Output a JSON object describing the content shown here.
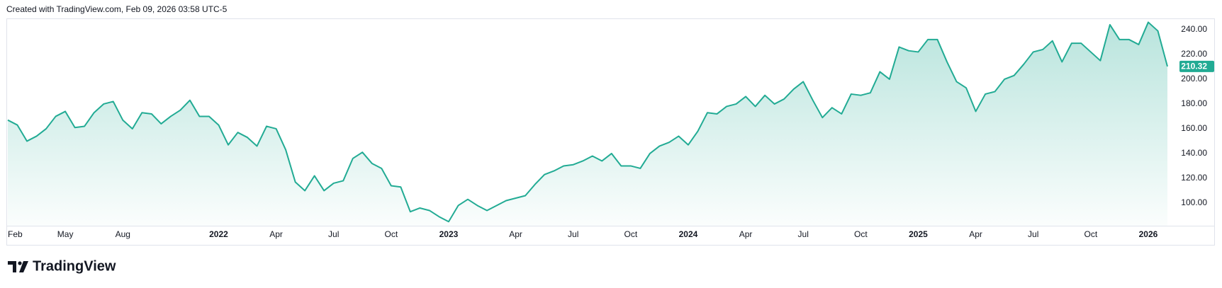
{
  "chart_data": {
    "type": "area",
    "title": "Created with TradingView.com, Feb 09, 2026 03:58 UTC-5",
    "source": "TradingView",
    "color": "#22ab94",
    "categories": [
      "Feb",
      null,
      null,
      null,
      null,
      null,
      "May",
      null,
      null,
      null,
      null,
      null,
      "Aug",
      null,
      null,
      null,
      null,
      null,
      null,
      null,
      null,
      null,
      "2022",
      null,
      null,
      null,
      null,
      null,
      "Apr",
      null,
      null,
      null,
      null,
      null,
      "Jul",
      null,
      null,
      null,
      null,
      null,
      "Oct",
      null,
      null,
      null,
      null,
      null,
      "2023",
      null,
      null,
      null,
      null,
      null,
      null,
      "Apr",
      null,
      null,
      null,
      null,
      null,
      "Jul",
      null,
      null,
      null,
      null,
      null,
      "Oct",
      null,
      null,
      null,
      null,
      null,
      "2024",
      null,
      null,
      null,
      null,
      null,
      "Apr",
      null,
      null,
      null,
      null,
      null,
      "Jul",
      null,
      null,
      null,
      null,
      null,
      "Oct",
      null,
      null,
      null,
      null,
      null,
      "2025",
      null,
      null,
      null,
      null,
      null,
      "Apr",
      null,
      null,
      null,
      null,
      null,
      "Jul",
      null,
      null,
      null,
      null,
      null,
      "Oct",
      null,
      null,
      null,
      null,
      null,
      "2026",
      null,
      null
    ],
    "values": [
      167,
      163,
      150,
      154,
      160,
      170,
      174,
      161,
      162,
      173,
      180,
      182,
      167,
      160,
      173,
      172,
      164,
      170,
      175,
      183,
      170,
      170,
      163,
      147,
      157,
      153,
      146,
      162,
      160,
      143,
      117,
      110,
      122,
      110,
      116,
      118,
      136,
      141,
      132,
      128,
      114,
      113,
      93,
      96,
      94,
      89,
      85,
      98,
      103,
      98,
      94,
      98,
      102,
      104,
      106,
      115,
      123,
      126,
      130,
      131,
      134,
      138,
      134,
      140,
      130,
      130,
      128,
      140,
      146,
      149,
      154,
      147,
      158,
      173,
      172,
      178,
      180,
      186,
      178,
      187,
      180,
      184,
      192,
      198,
      183,
      169,
      177,
      172,
      188,
      187,
      189,
      206,
      200,
      226,
      223,
      222,
      232,
      232,
      214,
      198,
      193,
      174,
      188,
      190,
      200,
      203,
      212,
      222,
      224,
      231,
      214,
      229,
      229,
      222,
      215,
      244,
      232,
      232,
      228,
      246,
      239,
      210.32
    ],
    "ylim": [
      81.7,
      249.1
    ],
    "yticks": [
      {
        "value": 100,
        "label": "100.00"
      },
      {
        "value": 120,
        "label": "120.00"
      },
      {
        "value": 140,
        "label": "140.00"
      },
      {
        "value": 160,
        "label": "160.00"
      },
      {
        "value": 180,
        "label": "180.00"
      },
      {
        "value": 200,
        "label": "200.00"
      },
      {
        "value": 220,
        "label": "220.00"
      },
      {
        "value": 240,
        "label": "240.00"
      }
    ],
    "grid": false
  }
}
